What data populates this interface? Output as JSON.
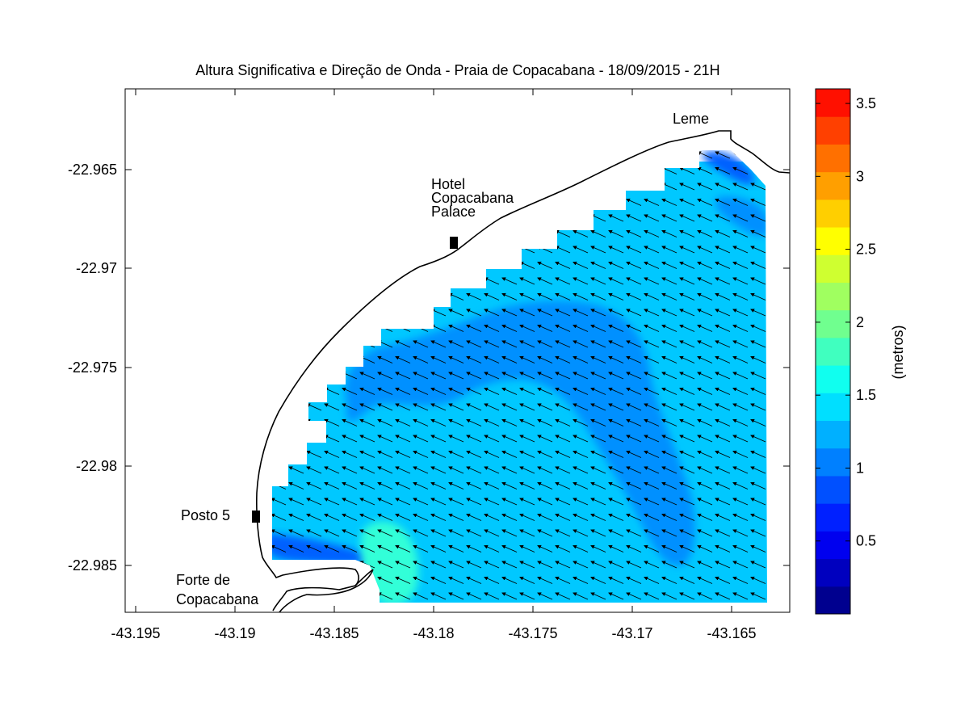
{
  "figure": {
    "title": "Altura Significativa e Direção de Onda - Praia de Copacabana - 18/09/2015 - 21H"
  },
  "axes": {
    "x_ticks": [
      "-43.195",
      "-43.19",
      "-43.185",
      "-43.18",
      "-43.175",
      "-43.17",
      "-43.165"
    ],
    "y_ticks": [
      "-22.965",
      "-22.97",
      "-22.975",
      "-22.98",
      "-22.985"
    ]
  },
  "colorbar": {
    "label": "(metros)",
    "ticks": [
      "0.5",
      "1",
      "1.5",
      "2",
      "2.5",
      "3",
      "3.5"
    ],
    "range": [
      0,
      3.6
    ],
    "colors": [
      "#00008f",
      "#0000bf",
      "#0000ef",
      "#0020ff",
      "#0050ff",
      "#0080ff",
      "#00b0ff",
      "#00dfff",
      "#10ffef",
      "#40ffbf",
      "#70ff8f",
      "#a0ff60",
      "#cfff30",
      "#ffff00",
      "#ffcf00",
      "#ff9f00",
      "#ff7000",
      "#ff4000",
      "#ff1000"
    ]
  },
  "labels": {
    "leme": "Leme",
    "hotel_line1": "Hotel",
    "hotel_line2": "Copacabana",
    "hotel_line3": "Palace",
    "posto5": "Posto 5",
    "forte_line1": "Forte de",
    "forte_line2": "Copacabana"
  },
  "chart_data": {
    "type": "heatmap",
    "title": "Altura Significativa e Direção de Onda - Praia de Copacabana - 18/09/2015 - 21H",
    "variable": "significant wave height",
    "unit": "metros",
    "xlim": [
      -43.1963,
      -43.1619
    ],
    "ylim": [
      -22.9875,
      -22.9613
    ],
    "zlim": [
      0,
      3.6
    ],
    "background_value_range": [
      1.25,
      1.45
    ],
    "low_band_value_range": [
      0.95,
      1.15
    ],
    "local_peak_near_forte": 1.7,
    "wave_direction": "arrows point west-northwest (from the east-southeast)",
    "points_of_interest": [
      {
        "name": "Leme",
        "lon": -43.1648,
        "lat": -22.9635
      },
      {
        "name": "Hotel Copacabana Palace",
        "lon": -43.1789,
        "lat": -22.9689
      },
      {
        "name": "Posto 5",
        "lon": -43.1888,
        "lat": -22.9826
      },
      {
        "name": "Forte de Copacabana",
        "lon": -43.1845,
        "lat": -22.9868
      }
    ]
  }
}
